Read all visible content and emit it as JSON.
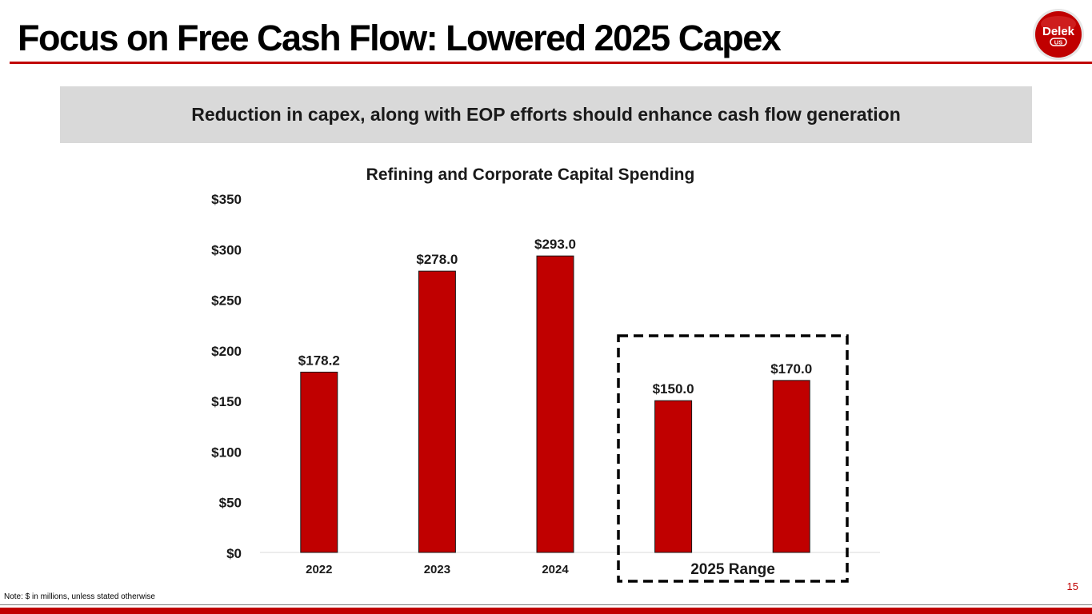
{
  "slide": {
    "title": "Focus on Free Cash Flow: Lowered 2025 Capex",
    "banner": "Reduction in capex, along with EOP efforts should enhance cash flow generation",
    "note": "Note: $ in millions, unless stated otherwise",
    "page_number": "15",
    "logo": {
      "icon": "delek-us-logo",
      "brand_text": "Delek",
      "sub_text": "US"
    }
  },
  "colors": {
    "accent": "#c00000",
    "bar": "#c00000",
    "banner_bg": "#d9d9d9"
  },
  "chart_data": {
    "type": "bar",
    "title": "Refining and Corporate Capital Spending",
    "categories": [
      "2022",
      "2023",
      "2024",
      "",
      ""
    ],
    "values": [
      178.2,
      278.0,
      293.0,
      150.0,
      170.0
    ],
    "data_labels": [
      "$178.2",
      "$278.0",
      "$293.0",
      "$150.0",
      "$170.0"
    ],
    "group_label": "2025 Range",
    "y_ticks": [
      0,
      50,
      100,
      150,
      200,
      250,
      300,
      350
    ],
    "y_tick_labels": [
      "$0",
      "$50",
      "$100",
      "$150",
      "$200",
      "$250",
      "$300",
      "$350"
    ],
    "ylim": [
      0,
      350
    ],
    "xlabel": "",
    "ylabel": "",
    "grid": false
  }
}
